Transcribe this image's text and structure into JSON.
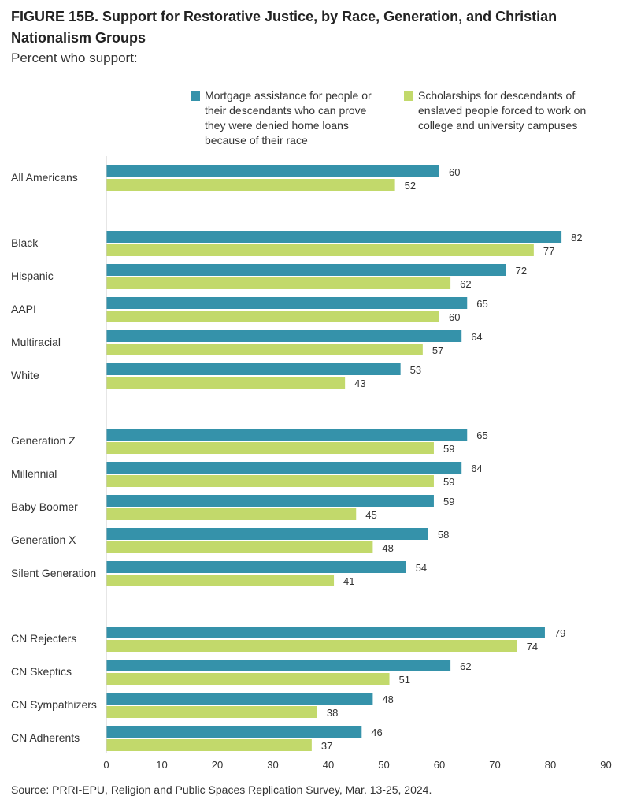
{
  "header": {
    "title": "FIGURE 15B.  Support for Restorative Justice, by Race, Generation, and Christian Nationalism Groups",
    "subtitle": "Percent who support:"
  },
  "legend": {
    "mortgage": "Mortgage assistance for people or their descendants who can prove they were denied home loans because of their race",
    "scholarships": "Scholarships for descendants of enslaved people forced to work on college and university campuses"
  },
  "source": "Source: PRRI-EPU, Religion and Public Spaces Replication Survey, Mar. 13-25, 2024.",
  "colors": {
    "mortgage": "#3592aa",
    "scholarships": "#c2d96b",
    "axis": "#cccccc",
    "text": "#333333"
  },
  "chart_data": {
    "type": "bar",
    "orientation": "horizontal",
    "xlim": [
      0,
      90
    ],
    "xticks": [
      0,
      10,
      20,
      30,
      40,
      50,
      60,
      70,
      80,
      90
    ],
    "grid": false,
    "legend_position": "top-right",
    "groups": [
      {
        "categories": [
          "All Americans"
        ]
      },
      {
        "categories": [
          "Black",
          "Hispanic",
          "AAPI",
          "Multiracial",
          "White"
        ]
      },
      {
        "categories": [
          "Generation Z",
          "Millennial",
          "Baby Boomer",
          "Generation X",
          "Silent Generation"
        ]
      },
      {
        "categories": [
          "CN Rejecters",
          "CN Skeptics",
          "CN Sympathizers",
          "CN Adherents"
        ]
      }
    ],
    "categories": [
      "All Americans",
      "Black",
      "Hispanic",
      "AAPI",
      "Multiracial",
      "White",
      "Generation Z",
      "Millennial",
      "Baby Boomer",
      "Generation X",
      "Silent Generation",
      "CN Rejecters",
      "CN Skeptics",
      "CN Sympathizers",
      "CN Adherents"
    ],
    "series": [
      {
        "name": "Mortgage assistance for people or their descendants who can prove they were denied home loans because of their race",
        "values": [
          60,
          82,
          72,
          65,
          64,
          53,
          65,
          64,
          59,
          58,
          54,
          79,
          62,
          48,
          46
        ]
      },
      {
        "name": "Scholarships for descendants of enslaved people forced to work on college and university campuses",
        "values": [
          52,
          77,
          62,
          60,
          57,
          43,
          59,
          59,
          45,
          48,
          41,
          74,
          51,
          38,
          37
        ]
      }
    ]
  }
}
